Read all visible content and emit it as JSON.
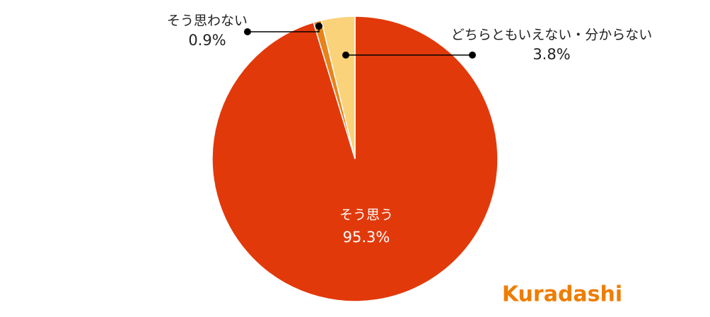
{
  "chart_data": {
    "type": "pie",
    "categories": [
      "そう思う",
      "そう思わない",
      "どちらともいえない・分からない"
    ],
    "values": [
      95.3,
      0.9,
      3.8
    ],
    "value_labels": [
      "95.3%",
      "0.9%",
      "3.8%"
    ],
    "colors": [
      "#e2390b",
      "#e8821a",
      "#f9d27a"
    ],
    "logo": "Kuradashi"
  }
}
